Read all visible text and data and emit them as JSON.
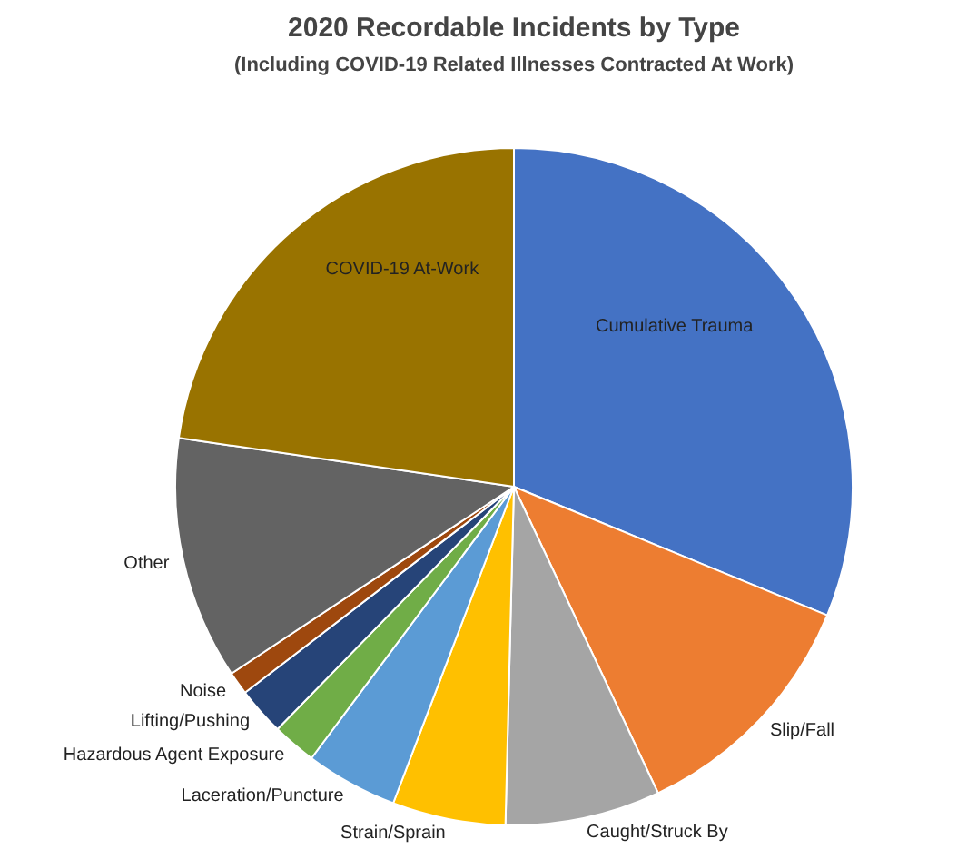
{
  "chart_data": {
    "type": "pie",
    "title": "2020 Recordable Incidents by Type",
    "subtitle": "(Including COVID-19 Related Illnesses Contracted At Work)",
    "categories": [
      "Cumulative Trauma",
      "Slip/Fall",
      "Caught/Struck By",
      "Strain/Sprain",
      "Laceration/Puncture",
      "Hazardous Agent Exposure",
      "Lifting/Pushing",
      "Noise",
      "Other",
      "COVID-19 At-Work"
    ],
    "values": [
      31.2,
      11.8,
      7.4,
      5.4,
      4.4,
      2.1,
      2.3,
      1.1,
      11.6,
      22.7
    ],
    "colors": [
      "#4472c4",
      "#ed7d31",
      "#a5a5a5",
      "#ffc000",
      "#5b9bd5",
      "#70ad47",
      "#264478",
      "#9e480e",
      "#636363",
      "#997300"
    ],
    "legend": false
  }
}
